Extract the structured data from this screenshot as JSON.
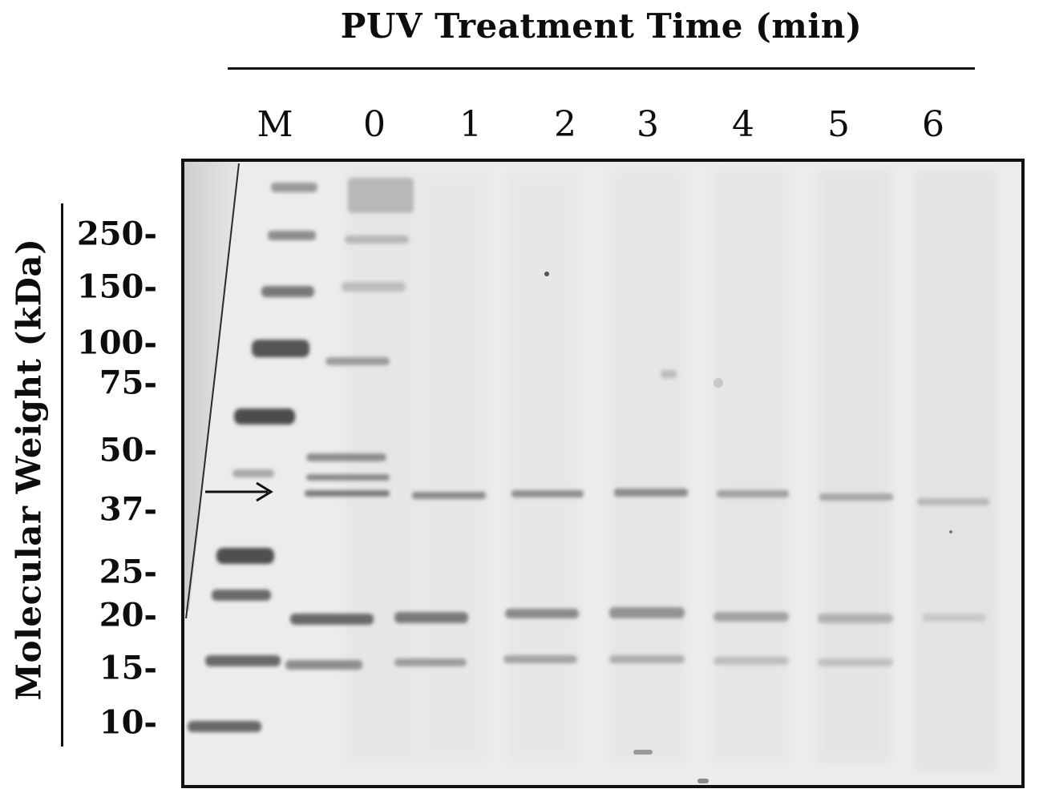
{
  "title": "PUV Treatment Time (min)",
  "y_axis_label": "Molecular Weight (kDa)",
  "lanes": [
    "M",
    "0",
    "1",
    "2",
    "3",
    "4",
    "5",
    "6"
  ],
  "mw_markers": [
    "250-",
    "150-",
    "100-",
    "75-",
    "50-",
    "37-",
    "25-",
    "20-",
    "15-",
    "10-"
  ],
  "arrow_icon": "right-arrow-icon",
  "colors": {
    "gel_background": "#ececec",
    "band_dark": "#5a5a5a",
    "text": "#0d0d0d"
  }
}
